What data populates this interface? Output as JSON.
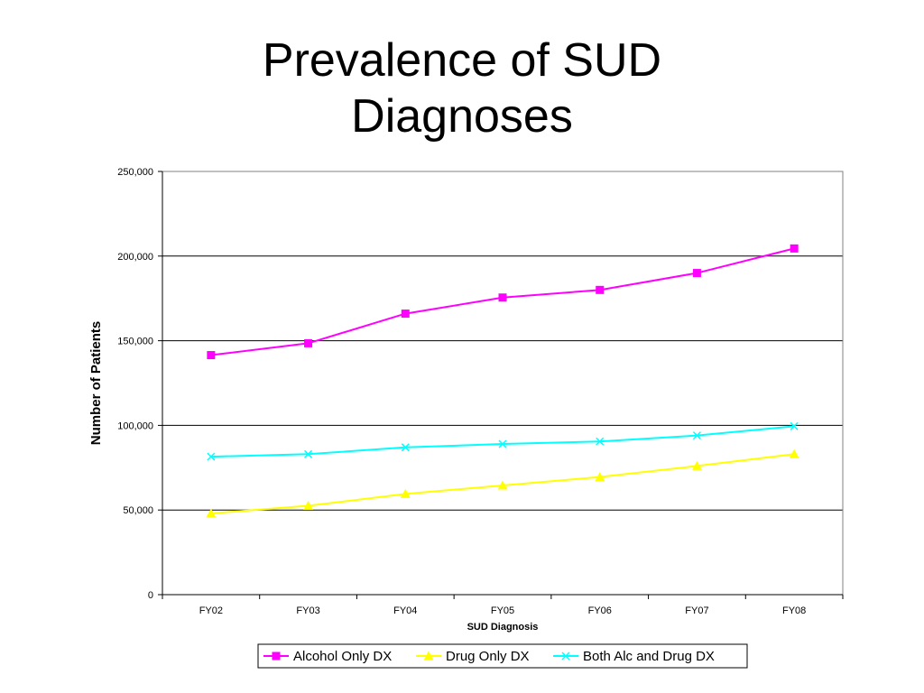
{
  "slide": {
    "title_line1": "Prevalence of SUD",
    "title_line2": "Diagnoses"
  },
  "chart_data": {
    "type": "line",
    "title": "Prevalence of SUD Diagnoses",
    "xlabel": "SUD Diagnosis",
    "ylabel": "Number of Patients",
    "categories": [
      "FY02",
      "FY03",
      "FY04",
      "FY05",
      "FY06",
      "FY07",
      "FY08"
    ],
    "ylim": [
      0,
      250000
    ],
    "yticks": [
      0,
      50000,
      100000,
      150000,
      200000,
      250000
    ],
    "ytick_labels": [
      "0",
      "50,000",
      "100,000",
      "150,000",
      "200,000",
      "250,000"
    ],
    "grid": "horizontal",
    "legend_position": "bottom",
    "series": [
      {
        "name": "Alcohol Only DX",
        "color": "#ff00ff",
        "marker": "square",
        "values": [
          141500,
          148500,
          166000,
          175500,
          180000,
          190000,
          204500
        ]
      },
      {
        "name": "Drug Only DX",
        "color": "#ffff00",
        "marker": "triangle",
        "values": [
          48000,
          52500,
          59500,
          64500,
          69500,
          76000,
          83000
        ]
      },
      {
        "name": "Both Alc and Drug DX",
        "color": "#00ffff",
        "marker": "x",
        "values": [
          81500,
          83000,
          87000,
          89000,
          90500,
          94000,
          99500
        ]
      }
    ]
  }
}
